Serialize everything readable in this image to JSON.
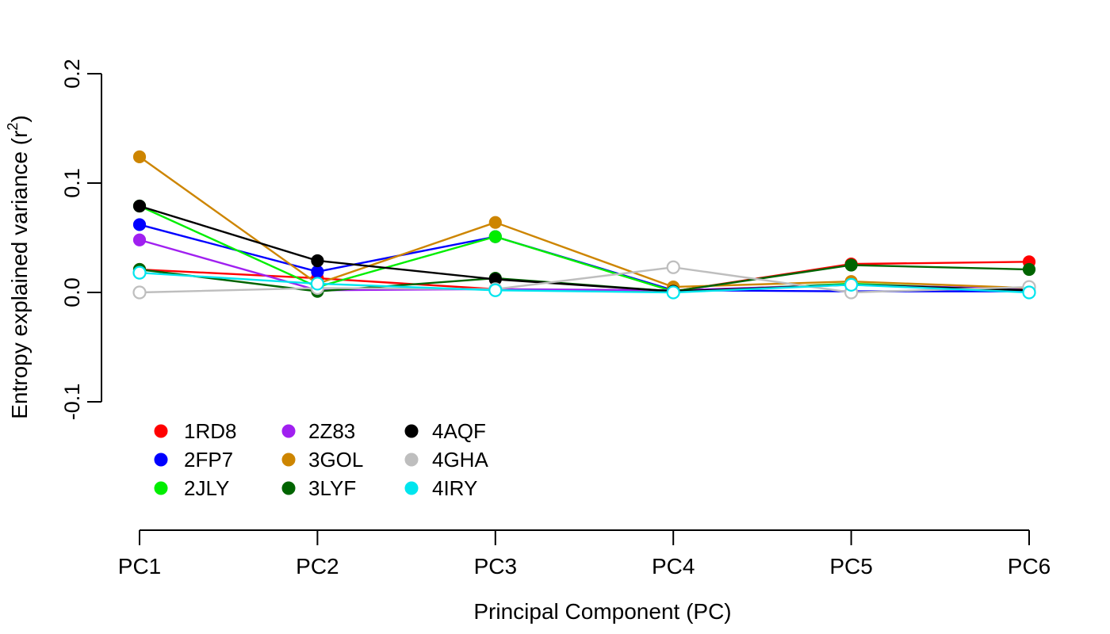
{
  "chart_data": {
    "type": "line",
    "xlabel": "Principal Component (PC)",
    "ylabel": "Entropy explained variance",
    "ylabel_superscript": "2",
    "ylim": [
      -0.1,
      0.2
    ],
    "yticks": [
      "-0.1",
      "0.0",
      "0.1",
      "0.2"
    ],
    "categories": [
      "PC1",
      "PC2",
      "PC3",
      "PC4",
      "PC5",
      "PC6"
    ],
    "grid": false,
    "legend_position": "lower-left inside plot",
    "series": [
      {
        "name": "1RD8",
        "color": "#ff0000",
        "marker": "filled",
        "values": [
          0.021,
          0.013,
          0.003,
          0.001,
          0.026,
          0.028
        ]
      },
      {
        "name": "2FP7",
        "color": "#0000ff",
        "marker": "filled",
        "values": [
          0.062,
          0.019,
          0.051,
          0.002,
          0.001,
          0.001
        ]
      },
      {
        "name": "2JLY",
        "color": "#00ee00",
        "marker": "filled",
        "values": [
          0.079,
          0.005,
          0.051,
          0.001,
          0.008,
          0.002
        ]
      },
      {
        "name": "2Z83",
        "color": "#a020f0",
        "marker": "filled",
        "values": [
          0.048,
          0.002,
          0.003,
          0.002,
          0.007,
          0.003
        ]
      },
      {
        "name": "3GOL",
        "color": "#cd8500",
        "marker": "filled",
        "values": [
          0.124,
          0.008,
          0.064,
          0.005,
          0.01,
          0.004
        ]
      },
      {
        "name": "3LYF",
        "color": "#006400",
        "marker": "filled",
        "values": [
          0.021,
          0.001,
          0.013,
          0.001,
          0.025,
          0.021
        ]
      },
      {
        "name": "4AQF",
        "color": "#000000",
        "marker": "filled",
        "values": [
          0.079,
          0.029,
          0.012,
          0.001,
          0.007,
          0.002
        ]
      },
      {
        "name": "4GHA",
        "color": "#bebebe",
        "marker": "open",
        "values": [
          0.0,
          0.004,
          0.003,
          0.023,
          0.0,
          0.005
        ]
      },
      {
        "name": "4IRY",
        "color": "#00e5ee",
        "marker": "open",
        "values": [
          0.018,
          0.008,
          0.002,
          0.0,
          0.007,
          0.0
        ]
      }
    ]
  }
}
